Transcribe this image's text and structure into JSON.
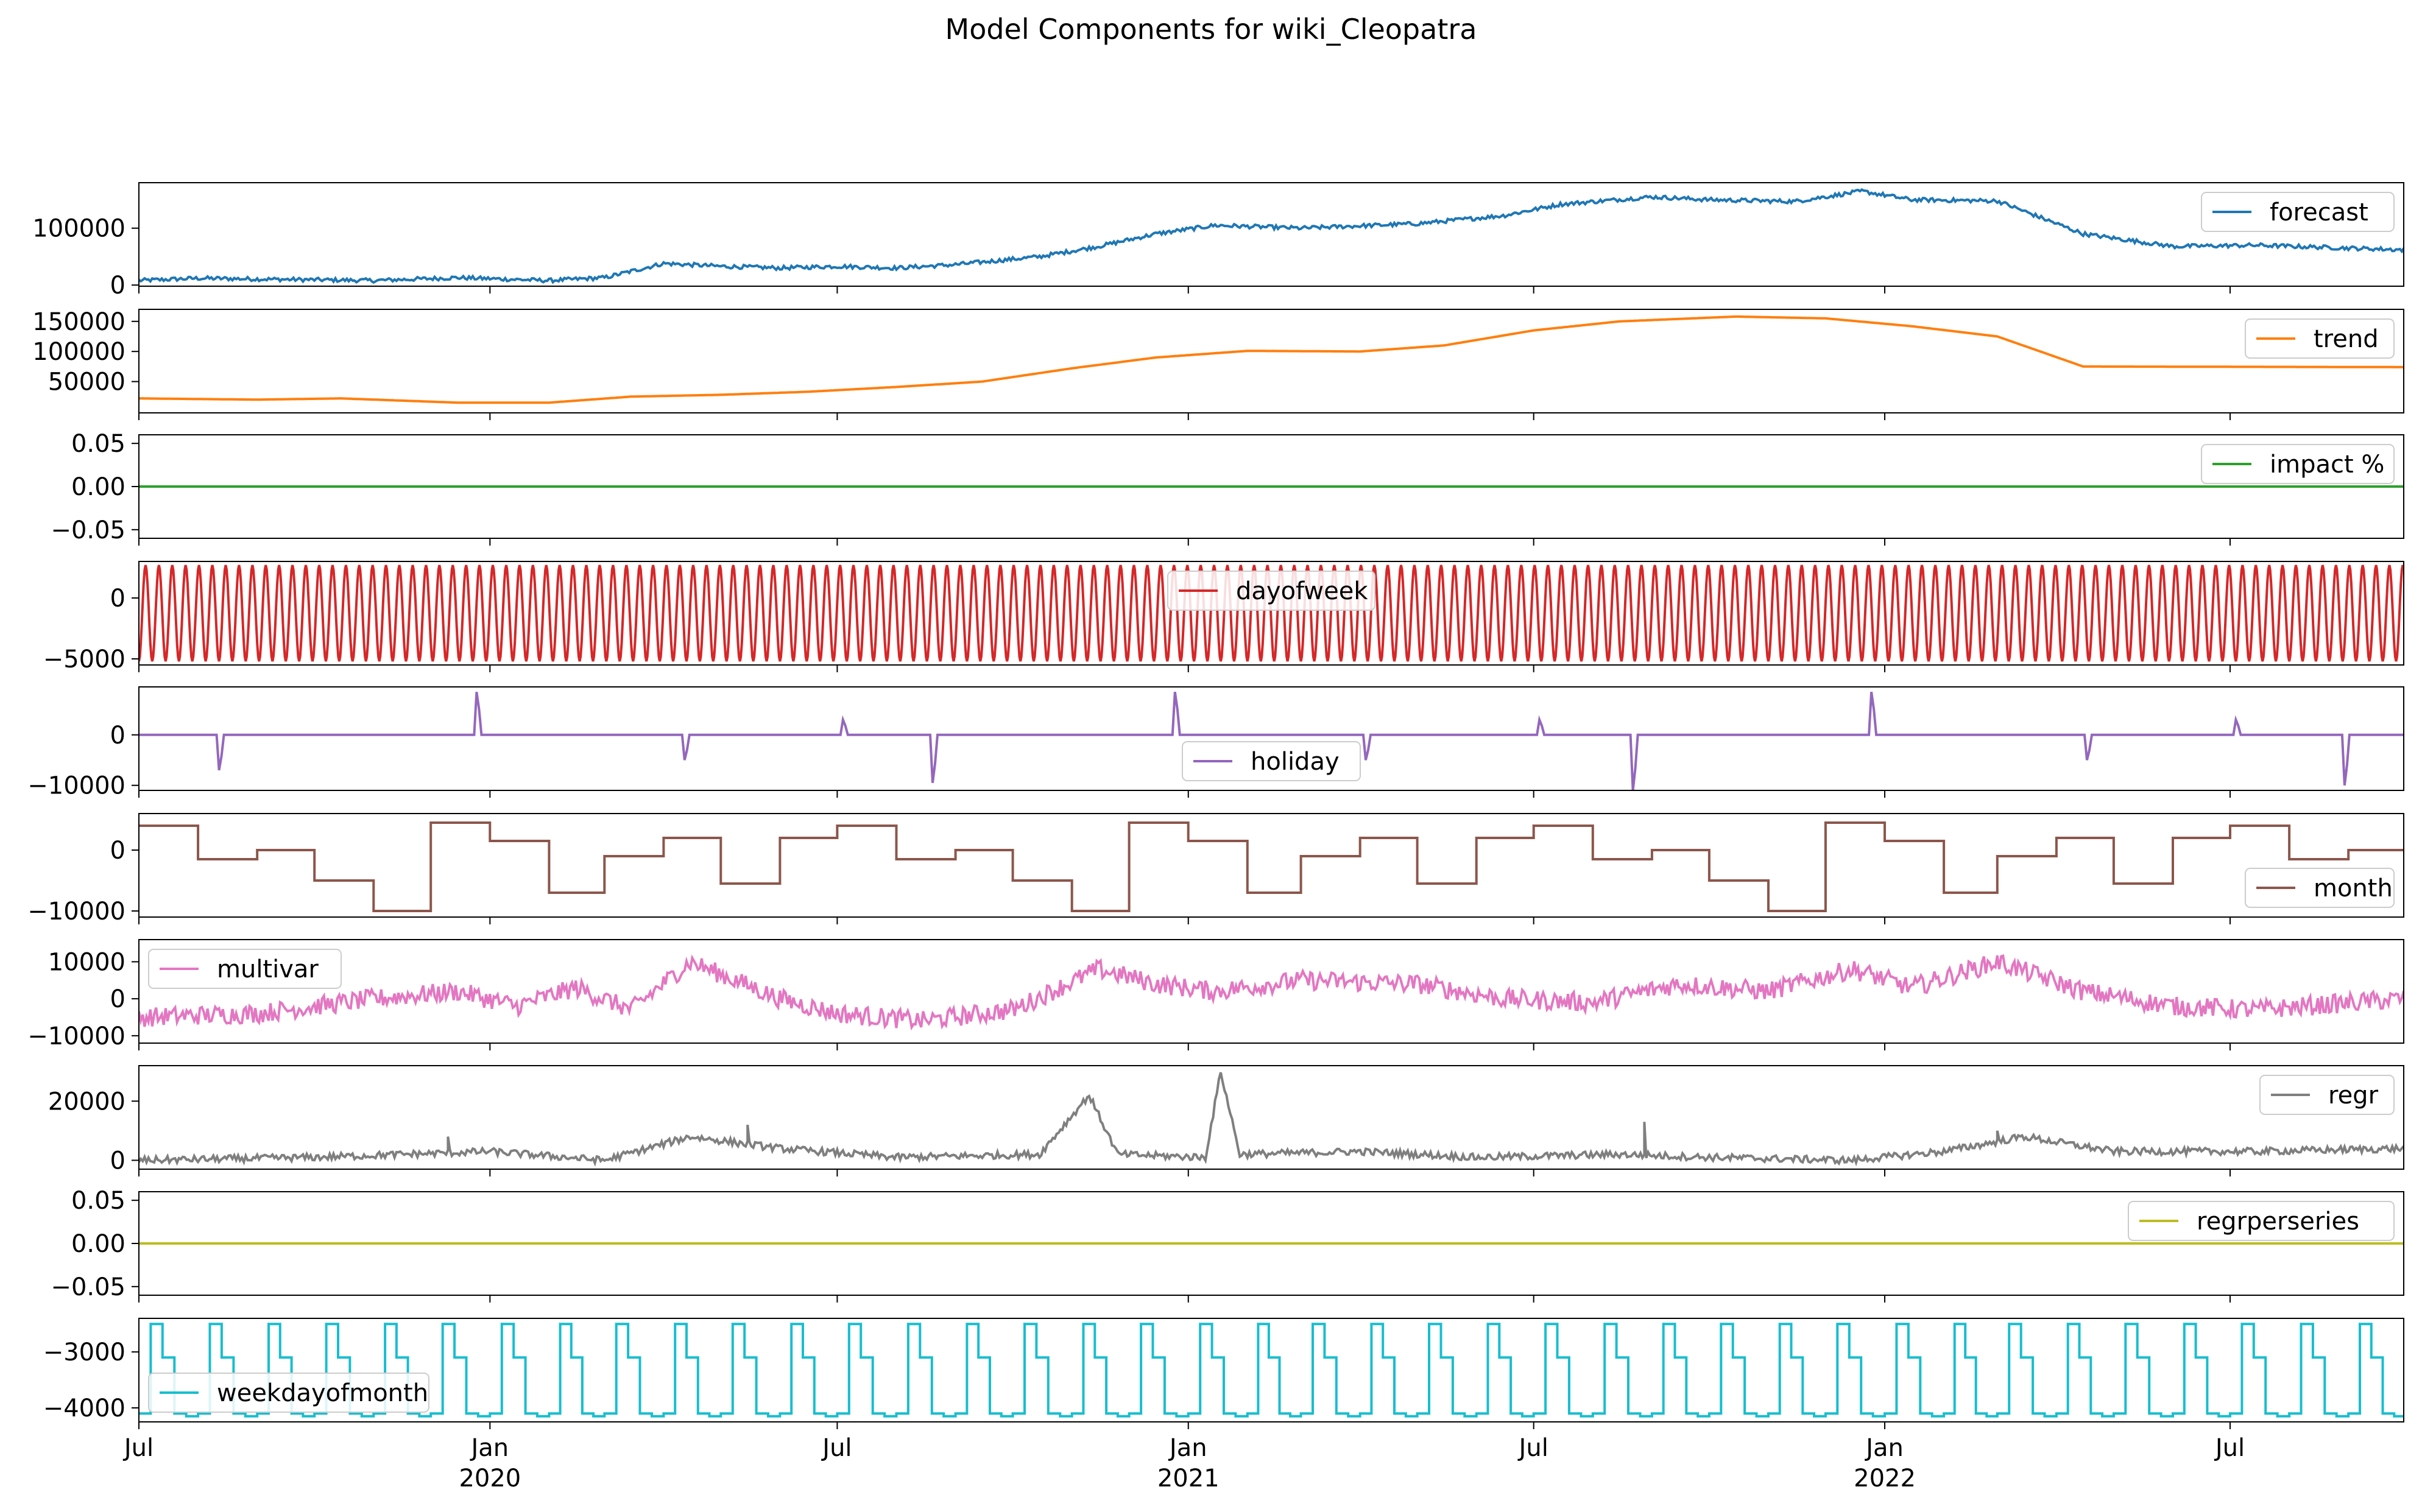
{
  "chart_data": {
    "type": "line",
    "title": "Model Components for wiki_Cleopatra",
    "x_range": [
      "2019-07-01",
      "2022-09-30"
    ],
    "x_ticks": [
      {
        "date": "2019-07-01",
        "label": "Jul",
        "year": ""
      },
      {
        "date": "2020-01-01",
        "label": "Jan",
        "year": "2020"
      },
      {
        "date": "2020-07-01",
        "label": "Jul",
        "year": ""
      },
      {
        "date": "2021-01-01",
        "label": "Jan",
        "year": "2021"
      },
      {
        "date": "2021-07-01",
        "label": "Jul",
        "year": ""
      },
      {
        "date": "2022-01-01",
        "label": "Jan",
        "year": "2022"
      },
      {
        "date": "2022-07-01",
        "label": "Jul",
        "year": ""
      }
    ],
    "panels": [
      {
        "name": "forecast",
        "color": "#1f77b4",
        "ylim": [
          -2000,
          180000
        ],
        "yticks": [
          {
            "v": 0,
            "label": "0"
          },
          {
            "v": 100000,
            "label": "100000"
          }
        ],
        "legend_pos": "upper-right",
        "points": [
          [
            "2019-07-01",
            8000
          ],
          [
            "2019-08-01",
            12000
          ],
          [
            "2019-09-15",
            10000
          ],
          [
            "2019-11-01",
            8000
          ],
          [
            "2019-12-15",
            13000
          ],
          [
            "2020-02-01",
            8000
          ],
          [
            "2020-03-01",
            13000
          ],
          [
            "2020-04-01",
            38000
          ],
          [
            "2020-05-01",
            33000
          ],
          [
            "2020-06-01",
            30000
          ],
          [
            "2020-07-01",
            33000
          ],
          [
            "2020-08-01",
            30000
          ],
          [
            "2020-09-01",
            36000
          ],
          [
            "2020-10-15",
            50000
          ],
          [
            "2020-11-15",
            68000
          ],
          [
            "2020-12-15",
            90000
          ],
          [
            "2021-01-15",
            105000
          ],
          [
            "2021-03-01",
            100000
          ],
          [
            "2021-05-01",
            108000
          ],
          [
            "2021-06-15",
            122000
          ],
          [
            "2021-07-15",
            142000
          ],
          [
            "2021-09-01",
            155000
          ],
          [
            "2021-10-01",
            150000
          ],
          [
            "2021-11-15",
            147000
          ],
          [
            "2021-12-20",
            165000
          ],
          [
            "2022-01-15",
            150000
          ],
          [
            "2022-03-01",
            148000
          ],
          [
            "2022-04-15",
            90000
          ],
          [
            "2022-06-01",
            68000
          ],
          [
            "2022-07-15",
            70000
          ],
          [
            "2022-09-30",
            62000
          ]
        ]
      },
      {
        "name": "trend",
        "color": "#ff7f0e",
        "ylim": [
          -2000,
          170000
        ],
        "yticks": [
          {
            "v": 50000,
            "label": "50000"
          },
          {
            "v": 100000,
            "label": "100000"
          },
          {
            "v": 150000,
            "label": "150000"
          }
        ],
        "legend_pos": "upper-right",
        "points": [
          [
            "2019-07-01",
            22000
          ],
          [
            "2019-09-01",
            20000
          ],
          [
            "2019-10-15",
            22000
          ],
          [
            "2019-12-15",
            15000
          ],
          [
            "2020-02-01",
            15000
          ],
          [
            "2020-03-15",
            25000
          ],
          [
            "2020-05-01",
            28000
          ],
          [
            "2020-06-15",
            33000
          ],
          [
            "2020-08-01",
            41000
          ],
          [
            "2020-09-15",
            50000
          ],
          [
            "2020-11-01",
            72000
          ],
          [
            "2020-12-15",
            90000
          ],
          [
            "2021-02-01",
            101000
          ],
          [
            "2021-04-01",
            100000
          ],
          [
            "2021-05-15",
            110000
          ],
          [
            "2021-07-01",
            135000
          ],
          [
            "2021-08-15",
            150000
          ],
          [
            "2021-10-15",
            158000
          ],
          [
            "2021-12-01",
            155000
          ],
          [
            "2022-01-15",
            142000
          ],
          [
            "2022-03-01",
            125000
          ],
          [
            "2022-04-15",
            75000
          ],
          [
            "2022-09-30",
            74000
          ]
        ]
      },
      {
        "name": "impact %",
        "color": "#2ca02c",
        "ylim": [
          -0.06,
          0.06
        ],
        "yticks": [
          {
            "v": 0.05,
            "label": "0.05"
          },
          {
            "v": 0,
            "label": "0.00"
          },
          {
            "v": -0.05,
            "label": "−0.05"
          }
        ],
        "legend_pos": "upper-right",
        "points": [
          [
            "2019-07-01",
            0
          ],
          [
            "2022-09-30",
            0
          ]
        ]
      },
      {
        "name": "dayofweek",
        "color": "#d62728",
        "ylim": [
          -5500,
          3000
        ],
        "yticks": [
          {
            "v": 0,
            "label": "0"
          },
          {
            "v": -5000,
            "label": "−5000"
          }
        ],
        "legend_pos": "upper-center",
        "periodic": {
          "period_days": 7,
          "min": -5200,
          "max": 2700
        }
      },
      {
        "name": "holiday",
        "color": "#9467bd",
        "ylim": [
          -11000,
          9500
        ],
        "yticks": [
          {
            "v": 0,
            "label": "0"
          },
          {
            "v": -10000,
            "label": "−10000"
          }
        ],
        "legend_pos": "lower-center",
        "spikes": [
          [
            "2019-08-12",
            -7000
          ],
          [
            "2019-12-25",
            8500
          ],
          [
            "2020-04-12",
            -5000
          ],
          [
            "2020-07-04",
            3000
          ],
          [
            "2020-08-20",
            -9500
          ],
          [
            "2020-12-25",
            8500
          ],
          [
            "2021-04-04",
            -5000
          ],
          [
            "2021-07-04",
            3000
          ],
          [
            "2021-08-22",
            -11000
          ],
          [
            "2021-12-25",
            8500
          ],
          [
            "2022-04-17",
            -5000
          ],
          [
            "2022-07-04",
            3000
          ],
          [
            "2022-08-30",
            -10000
          ]
        ]
      },
      {
        "name": "month",
        "color": "#8c564b",
        "ylim": [
          -11000,
          6000
        ],
        "yticks": [
          {
            "v": 0,
            "label": "0"
          },
          {
            "v": -10000,
            "label": "−10000"
          }
        ],
        "legend_pos": "lower-right",
        "monthly": [
          4000,
          -1500,
          0,
          -5000,
          -10000,
          4500,
          1500,
          -7000,
          -1000,
          2000,
          -5500,
          2000
        ]
      },
      {
        "name": "multivar",
        "color": "#e377c2",
        "ylim": [
          -12000,
          16000
        ],
        "yticks": [
          {
            "v": 10000,
            "label": "10000"
          },
          {
            "v": 0,
            "label": "0"
          },
          {
            "v": -10000,
            "label": "−10000"
          }
        ],
        "legend_pos": "upper-left",
        "points": [
          [
            "2019-07-01",
            -5000
          ],
          [
            "2019-09-01",
            -4000
          ],
          [
            "2019-11-01",
            0
          ],
          [
            "2019-12-15",
            2000
          ],
          [
            "2020-01-15",
            -2000
          ],
          [
            "2020-02-15",
            3000
          ],
          [
            "2020-03-15",
            -3000
          ],
          [
            "2020-04-15",
            10000
          ],
          [
            "2020-06-01",
            0
          ],
          [
            "2020-07-01",
            -4000
          ],
          [
            "2020-08-15",
            -6000
          ],
          [
            "2020-10-01",
            -3000
          ],
          [
            "2020-11-15",
            8000
          ],
          [
            "2020-12-15",
            4000
          ],
          [
            "2021-01-15",
            2000
          ],
          [
            "2021-03-01",
            5000
          ],
          [
            "2021-05-01",
            4000
          ],
          [
            "2021-06-15",
            0
          ],
          [
            "2021-08-01",
            -1000
          ],
          [
            "2021-09-15",
            4000
          ],
          [
            "2021-11-01",
            2000
          ],
          [
            "2021-12-15",
            8000
          ],
          [
            "2022-01-15",
            3000
          ],
          [
            "2022-03-01",
            10000
          ],
          [
            "2022-04-15",
            2000
          ],
          [
            "2022-06-01",
            -2000
          ],
          [
            "2022-07-15",
            -3000
          ],
          [
            "2022-09-30",
            0
          ]
        ]
      },
      {
        "name": "regr",
        "color": "#7f7f7f",
        "ylim": [
          -3000,
          32000
        ],
        "yticks": [
          {
            "v": 20000,
            "label": "20000"
          },
          {
            "v": 0,
            "label": "0"
          }
        ],
        "legend_pos": "upper-right",
        "points": [
          [
            "2019-07-01",
            0
          ],
          [
            "2019-10-01",
            1000
          ],
          [
            "2020-01-01",
            3000
          ],
          [
            "2020-03-01",
            0
          ],
          [
            "2020-04-15",
            8000
          ],
          [
            "2020-06-01",
            4000
          ],
          [
            "2020-08-01",
            1000
          ],
          [
            "2020-10-15",
            2000
          ],
          [
            "2020-11-10",
            22000
          ],
          [
            "2020-11-25",
            2000
          ],
          [
            "2021-01-10",
            1000
          ],
          [
            "2021-01-18",
            30000
          ],
          [
            "2021-01-28",
            2000
          ],
          [
            "2021-04-01",
            3000
          ],
          [
            "2021-06-01",
            1000
          ],
          [
            "2021-08-15",
            2000
          ],
          [
            "2021-10-01",
            1000
          ],
          [
            "2021-12-15",
            0
          ],
          [
            "2022-02-01",
            3000
          ],
          [
            "2022-03-15",
            8000
          ],
          [
            "2022-05-01",
            3000
          ],
          [
            "2022-07-15",
            3000
          ],
          [
            "2022-09-30",
            4000
          ]
        ],
        "spike_dates": [
          [
            "2019-12-10",
            8000
          ],
          [
            "2020-05-15",
            12000
          ],
          [
            "2021-08-28",
            13000
          ],
          [
            "2022-03-01",
            10000
          ]
        ]
      },
      {
        "name": "regrperseries",
        "color": "#bcbd22",
        "ylim": [
          -0.06,
          0.06
        ],
        "yticks": [
          {
            "v": 0.05,
            "label": "0.05"
          },
          {
            "v": 0,
            "label": "0.00"
          },
          {
            "v": -0.05,
            "label": "−0.05"
          }
        ],
        "legend_pos": "upper-right",
        "points": [
          [
            "2019-07-01",
            0
          ],
          [
            "2022-09-30",
            0
          ]
        ]
      },
      {
        "name": "weekdayofmonth",
        "color": "#17becf",
        "ylim": [
          -4250,
          -2400
        ],
        "yticks": [
          {
            "v": -3000,
            "label": "−3000"
          },
          {
            "v": -4000,
            "label": "−4000"
          }
        ],
        "legend_pos": "lower-left",
        "monthly_steps": [
          -4100,
          -2500,
          -3100,
          -4100,
          -4150
        ]
      }
    ]
  }
}
